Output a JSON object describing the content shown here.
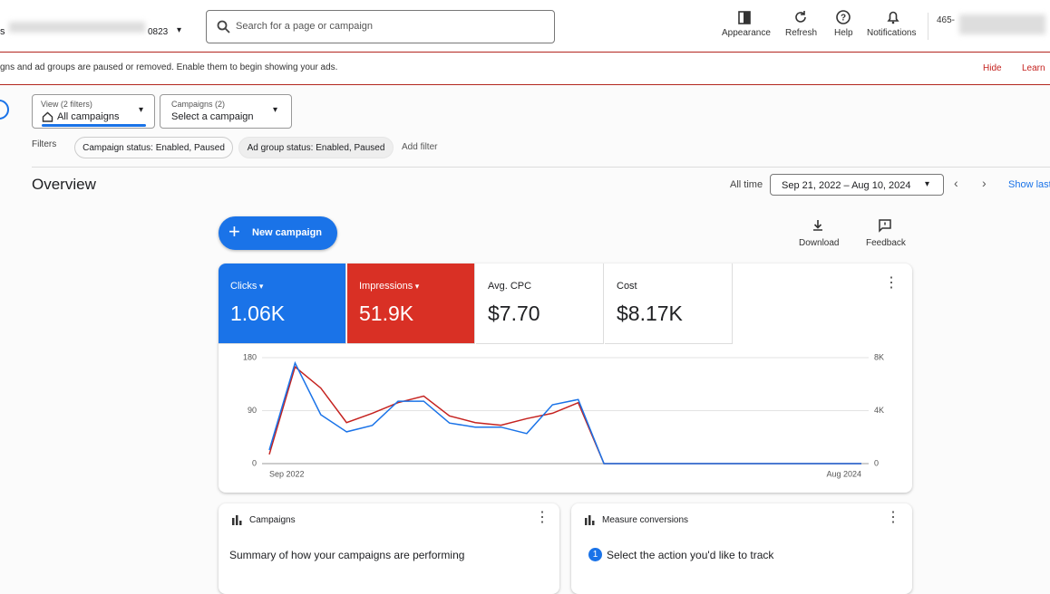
{
  "top_bar": {
    "account_suffix": "0823",
    "search_placeholder": "Search for a page or campaign",
    "nav": [
      "Appearance",
      "Refresh",
      "Help",
      "Notifications"
    ],
    "customer_id": "465-"
  },
  "banner": {
    "message": "gns and ad groups are paused or removed. Enable them to begin showing your ads.",
    "actions": [
      "Hide",
      "Learn"
    ]
  },
  "selectors": [
    {
      "label": "View (2 filters)",
      "value": "All campaigns"
    },
    {
      "label": "Campaigns (2)",
      "value": "Select a campaign"
    }
  ],
  "filters": {
    "label": "Filters",
    "chips": [
      "Campaign status: Enabled, Paused",
      "Ad group status: Enabled, Paused"
    ],
    "add": "Add filter"
  },
  "overview": {
    "title": "Overview",
    "range_label": "All time",
    "date_range": "Sep 21, 2022 – Aug 10, 2024",
    "show_last": "Show last",
    "new_campaign": "New campaign",
    "actions": [
      "Download",
      "Feedback"
    ],
    "metrics": [
      {
        "name": "Clicks",
        "value": "1.06K",
        "color": "#1a73e8"
      },
      {
        "name": "Impressions",
        "value": "51.9K",
        "color": "#d93025"
      },
      {
        "name": "Avg. CPC",
        "value": "$7.70",
        "color": "#ffffff"
      },
      {
        "name": "Cost",
        "value": "$8.17K",
        "color": "#ffffff"
      }
    ],
    "chart": {
      "type": "line",
      "categories": [
        "Sep 2022",
        null,
        null,
        null,
        null,
        null,
        null,
        null,
        null,
        null,
        null,
        null,
        null,
        null,
        null,
        null,
        null,
        null,
        null,
        null,
        null,
        null,
        null,
        "Aug 2024"
      ],
      "series": [
        {
          "color": "#1a73e8",
          "values": [
            23,
            171,
            83,
            54,
            65,
            106,
            106,
            69,
            62,
            62,
            51,
            100,
            109,
            0,
            0,
            0,
            0,
            0,
            0,
            0,
            0,
            0,
            0,
            0
          ]
        },
        {
          "color": "#c5221f",
          "axis": "y2",
          "values": [
            700,
            7300,
            5700,
            3100,
            3800,
            4600,
            5100,
            3600,
            3100,
            2900,
            3400,
            3800,
            4600,
            0,
            0,
            0,
            0,
            0,
            0,
            0,
            0,
            0,
            0,
            0
          ]
        }
      ],
      "ylim": [
        0,
        180
      ],
      "yticks": [
        0,
        90,
        180
      ],
      "y2lim": [
        0,
        8000
      ],
      "y2ticks": [
        0,
        {
          "value": 4000,
          "label": "4K"
        },
        {
          "value": 8000,
          "label": "8K"
        }
      ],
      "grid": true
    }
  },
  "cards": [
    {
      "title": "Campaigns",
      "text": "Summary of how your campaigns are performing"
    },
    {
      "title": "Measure conversions",
      "step": "1",
      "text": "Select the action you'd like to track"
    }
  ]
}
